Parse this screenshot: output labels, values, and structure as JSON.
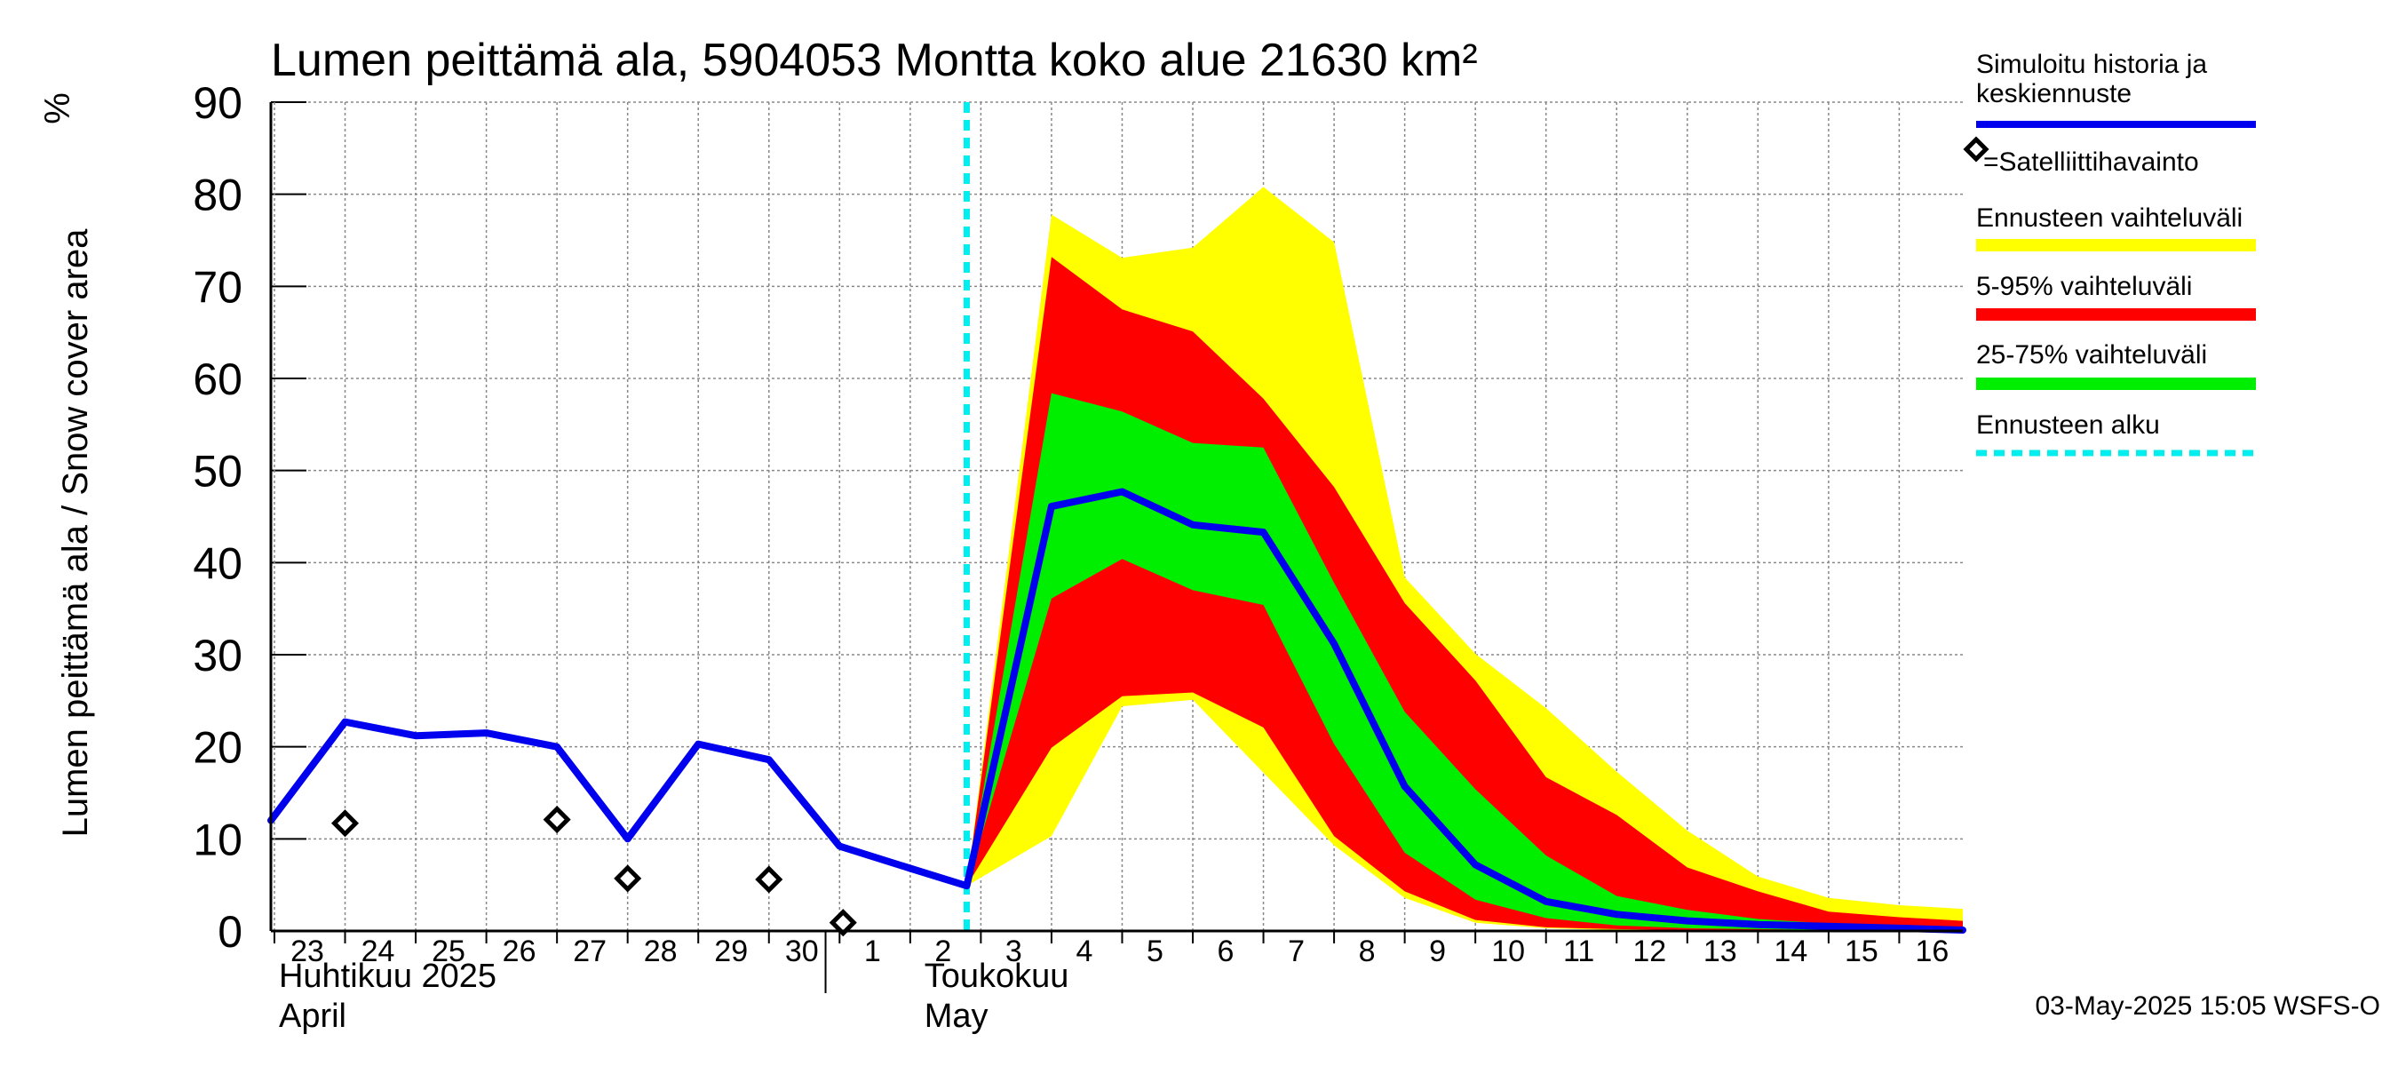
{
  "chart_data": {
    "type": "line",
    "title": "Lumen peittämä ala, 5904053 Montta koko alue 21630 km²",
    "ylabel": "Lumen peittämä ala / Snow cover area",
    "yunit": "%",
    "ylim": [
      0,
      90
    ],
    "yticks": [
      0,
      10,
      20,
      30,
      40,
      50,
      60,
      70,
      80,
      90
    ],
    "grid": true,
    "x_index_range": [
      -0.05,
      23.9
    ],
    "x_ticks": [
      {
        "label": "23",
        "x": 0
      },
      {
        "label": "24",
        "x": 1
      },
      {
        "label": "25",
        "x": 2
      },
      {
        "label": "26",
        "x": 3
      },
      {
        "label": "27",
        "x": 4
      },
      {
        "label": "28",
        "x": 5
      },
      {
        "label": "29",
        "x": 6
      },
      {
        "label": "30",
        "x": 7
      },
      {
        "label": "1",
        "x": 8
      },
      {
        "label": "2",
        "x": 9
      },
      {
        "label": "3",
        "x": 10
      },
      {
        "label": "4",
        "x": 11
      },
      {
        "label": "5",
        "x": 12
      },
      {
        "label": "6",
        "x": 13
      },
      {
        "label": "7",
        "x": 14
      },
      {
        "label": "8",
        "x": 15
      },
      {
        "label": "9",
        "x": 16
      },
      {
        "label": "10",
        "x": 17
      },
      {
        "label": "11",
        "x": 18
      },
      {
        "label": "12",
        "x": 19
      },
      {
        "label": "13",
        "x": 20
      },
      {
        "label": "14",
        "x": 21
      },
      {
        "label": "15",
        "x": 22
      },
      {
        "label": "16",
        "x": 23
      }
    ],
    "months": [
      {
        "fi": "Huhtikuu  2025",
        "en": "April",
        "x": 0
      },
      {
        "fi": "Toukokuu",
        "en": "May",
        "x": 9.2
      }
    ],
    "month_divider_x": 7.5,
    "forecast_start_x": 9.8,
    "series": [
      {
        "name": "Simuloitu historia ja keskiennuste",
        "color": "#0000ee",
        "x": [
          -0.05,
          1,
          2,
          3,
          4,
          5,
          6,
          7,
          8,
          9,
          9.8,
          11,
          12,
          13,
          14,
          15,
          16,
          17,
          18,
          19,
          20,
          21,
          22,
          23,
          23.9
        ],
        "values": [
          12,
          22.7,
          21.2,
          21.5,
          20,
          10,
          20.3,
          18.6,
          9.2,
          6.8,
          4.9,
          46.1,
          47.7,
          44.1,
          43.3,
          31.2,
          15.7,
          7.2,
          3.2,
          1.8,
          1.1,
          0.7,
          0.5,
          0.3,
          0.1
        ]
      }
    ],
    "bands": [
      {
        "name": "Ennusteen vaihteluväli",
        "color": "#ffff00",
        "x": [
          9.8,
          11,
          12,
          13,
          14,
          15,
          16,
          17,
          18,
          19,
          20,
          21,
          22,
          23,
          23.9
        ],
        "upper": [
          4.9,
          77.8,
          73.1,
          74.2,
          80.8,
          74.8,
          38.4,
          30.1,
          24.2,
          17.3,
          10.9,
          5.9,
          3.6,
          2.8,
          2.4
        ],
        "lower": [
          4.9,
          10.3,
          24.4,
          25.1,
          17.2,
          9.3,
          3.6,
          0.9,
          0.3,
          0.1,
          0.1,
          0,
          0,
          0,
          0
        ]
      },
      {
        "name": "5-95% vaihteluväli",
        "color": "#ff0000",
        "x": [
          9.8,
          11,
          12,
          13,
          14,
          15,
          16,
          17,
          18,
          19,
          20,
          21,
          22,
          23,
          23.9
        ],
        "upper": [
          4.9,
          73.2,
          67.5,
          65.1,
          57.8,
          48.2,
          35.6,
          27.2,
          16.7,
          12.6,
          6.9,
          4.3,
          2.1,
          1.5,
          1.1
        ],
        "lower": [
          4.9,
          19.9,
          25.5,
          25.9,
          22.1,
          10.3,
          4.3,
          1.2,
          0.4,
          0.2,
          0.1,
          0,
          0,
          0,
          0
        ]
      },
      {
        "name": "25-75% vaihteluväli",
        "color": "#00ee00",
        "x": [
          9.8,
          11,
          12,
          13,
          14,
          15,
          16,
          17,
          18,
          19,
          20,
          21,
          22,
          23,
          23.9
        ],
        "upper": [
          4.9,
          58.4,
          56.4,
          53,
          52.5,
          37.8,
          23.8,
          15.4,
          8.2,
          3.8,
          2.3,
          1.3,
          0.8,
          0.4,
          0.2
        ],
        "lower": [
          4.9,
          36.1,
          40.4,
          37,
          35.4,
          20.3,
          8.5,
          3.4,
          1.4,
          0.6,
          0.3,
          0.2,
          0.1,
          0,
          0
        ]
      }
    ],
    "observations": {
      "name": "Satelliittihavainto",
      "x": [
        1,
        4,
        5,
        7,
        8.05
      ],
      "values": [
        11.7,
        12.1,
        5.7,
        5.6,
        0.9
      ]
    },
    "legend": [
      {
        "label": "Simuloitu historia ja\nkeskiennuste",
        "kind": "line",
        "color": "#0000ee"
      },
      {
        "label": "=Satelliittihavainto",
        "kind": "marker",
        "color": "#000000"
      },
      {
        "label": "Ennusteen vaihteluväli",
        "kind": "band",
        "color": "#ffff00"
      },
      {
        "label": "5-95% vaihteluväli",
        "kind": "band",
        "color": "#ff0000"
      },
      {
        "label": "25-75% vaihteluväli",
        "kind": "band",
        "color": "#00ee00"
      },
      {
        "label": "Ennusteen alku",
        "kind": "dashed",
        "color": "#00eeee"
      }
    ],
    "footer": "03-May-2025 15:05 WSFS-O"
  }
}
